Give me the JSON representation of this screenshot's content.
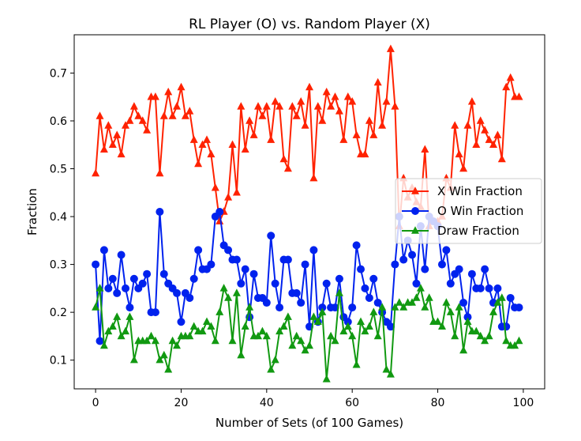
{
  "chart_data": {
    "type": "line",
    "title": "RL Player (O) vs. Random Player (X)",
    "xlabel": "Number of Sets (of 100 Games)",
    "ylabel": "Fraction",
    "xlim": [
      -5,
      105
    ],
    "ylim": [
      0.04,
      0.78
    ],
    "xticks": [
      0,
      20,
      40,
      60,
      80,
      100
    ],
    "yticks": [
      0.1,
      0.2,
      0.3,
      0.4,
      0.5,
      0.6,
      0.7
    ],
    "grid": false,
    "legend_position": "center-right",
    "series": [
      {
        "name": "X Win Fraction",
        "color": "#ff2200",
        "marker": "triangle",
        "values": [
          0.49,
          0.61,
          0.54,
          0.59,
          0.55,
          0.57,
          0.53,
          0.59,
          0.6,
          0.63,
          0.61,
          0.6,
          0.58,
          0.65,
          0.65,
          0.49,
          0.61,
          0.66,
          0.61,
          0.63,
          0.67,
          0.61,
          0.62,
          0.56,
          0.51,
          0.55,
          0.56,
          0.53,
          0.46,
          0.39,
          0.41,
          0.44,
          0.55,
          0.45,
          0.63,
          0.54,
          0.6,
          0.57,
          0.63,
          0.61,
          0.63,
          0.56,
          0.64,
          0.63,
          0.52,
          0.5,
          0.63,
          0.61,
          0.64,
          0.59,
          0.67,
          0.48,
          0.63,
          0.6,
          0.66,
          0.63,
          0.65,
          0.62,
          0.56,
          0.65,
          0.64,
          0.57,
          0.53,
          0.53,
          0.6,
          0.57,
          0.68,
          0.59,
          0.64,
          0.75,
          0.63,
          0.38,
          0.48,
          0.44,
          0.46,
          0.43,
          0.42,
          0.54,
          0.38,
          0.39,
          0.39,
          0.4,
          0.48,
          0.46,
          0.59,
          0.53,
          0.5,
          0.59,
          0.64,
          0.55,
          0.6,
          0.58,
          0.56,
          0.55,
          0.57,
          0.52,
          0.67,
          0.69,
          0.65,
          0.65
        ]
      },
      {
        "name": "O Win Fraction",
        "color": "#0022ee",
        "marker": "circle",
        "values": [
          0.3,
          0.14,
          0.33,
          0.25,
          0.27,
          0.24,
          0.32,
          0.25,
          0.21,
          0.27,
          0.25,
          0.26,
          0.28,
          0.2,
          0.2,
          0.41,
          0.28,
          0.26,
          0.25,
          0.24,
          0.18,
          0.24,
          0.23,
          0.27,
          0.33,
          0.29,
          0.29,
          0.3,
          0.4,
          0.41,
          0.34,
          0.33,
          0.31,
          0.31,
          0.26,
          0.29,
          0.19,
          0.28,
          0.23,
          0.23,
          0.22,
          0.36,
          0.26,
          0.21,
          0.31,
          0.31,
          0.24,
          0.24,
          0.22,
          0.3,
          0.17,
          0.33,
          0.18,
          0.21,
          0.26,
          0.21,
          0.21,
          0.27,
          0.19,
          0.18,
          0.21,
          0.34,
          0.29,
          0.25,
          0.23,
          0.27,
          0.22,
          0.2,
          0.18,
          0.17,
          0.3,
          0.4,
          0.31,
          0.35,
          0.32,
          0.26,
          0.38,
          0.29,
          0.4,
          0.39,
          0.38,
          0.3,
          0.33,
          0.26,
          0.28,
          0.29,
          0.22,
          0.19,
          0.28,
          0.25,
          0.25,
          0.29,
          0.25,
          0.22,
          0.25,
          0.17,
          0.17,
          0.23,
          0.21,
          0.21
        ]
      },
      {
        "name": "Draw Fraction",
        "color": "#119911",
        "marker": "triangle",
        "values": [
          0.21,
          0.25,
          0.13,
          0.16,
          0.17,
          0.19,
          0.15,
          0.16,
          0.19,
          0.1,
          0.14,
          0.14,
          0.14,
          0.15,
          0.14,
          0.1,
          0.11,
          0.08,
          0.14,
          0.13,
          0.15,
          0.15,
          0.15,
          0.17,
          0.16,
          0.16,
          0.18,
          0.17,
          0.14,
          0.2,
          0.25,
          0.23,
          0.14,
          0.24,
          0.11,
          0.17,
          0.21,
          0.15,
          0.15,
          0.16,
          0.15,
          0.08,
          0.1,
          0.16,
          0.17,
          0.19,
          0.13,
          0.15,
          0.14,
          0.12,
          0.13,
          0.19,
          0.18,
          0.2,
          0.06,
          0.15,
          0.14,
          0.24,
          0.16,
          0.17,
          0.15,
          0.09,
          0.18,
          0.16,
          0.17,
          0.2,
          0.15,
          0.21,
          0.08,
          0.07,
          0.21,
          0.22,
          0.21,
          0.22,
          0.22,
          0.23,
          0.25,
          0.21,
          0.23,
          0.18,
          0.18,
          0.17,
          0.22,
          0.2,
          0.15,
          0.21,
          0.12,
          0.18,
          0.16,
          0.16,
          0.15,
          0.14,
          0.15,
          0.2,
          0.22,
          0.23,
          0.14,
          0.13,
          0.13,
          0.14
        ]
      }
    ]
  }
}
